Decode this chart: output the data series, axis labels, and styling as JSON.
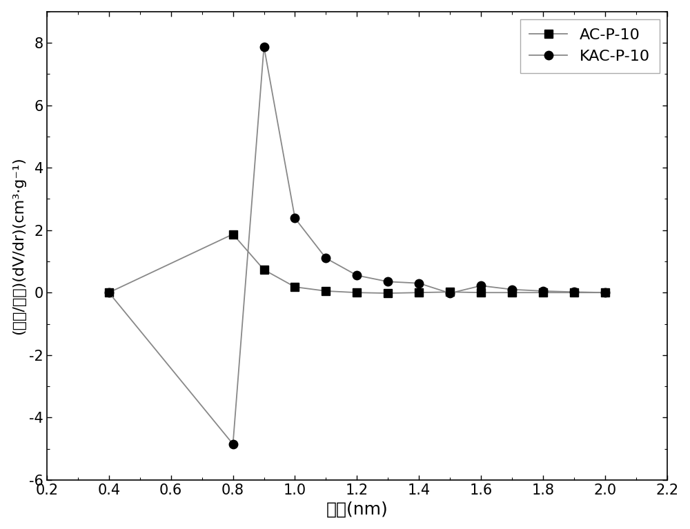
{
  "ac_x": [
    0.4,
    0.8,
    0.9,
    1.0,
    1.1,
    1.2,
    1.3,
    1.4,
    1.5,
    1.6,
    1.7,
    1.8,
    1.9,
    2.0
  ],
  "ac_y": [
    0.0,
    1.87,
    0.73,
    0.18,
    0.05,
    0.0,
    -0.02,
    0.0,
    0.02,
    0.0,
    0.0,
    0.0,
    0.0,
    0.0
  ],
  "kac_x": [
    0.4,
    0.8,
    0.9,
    1.0,
    1.1,
    1.2,
    1.3,
    1.4,
    1.5,
    1.6,
    1.7,
    1.8,
    1.9,
    2.0
  ],
  "kac_y": [
    0.0,
    -4.85,
    7.87,
    2.38,
    1.1,
    0.55,
    0.35,
    0.3,
    -0.02,
    0.22,
    0.1,
    0.05,
    0.02,
    0.0
  ],
  "xlabel": "孔径(nm)",
  "ylabel_line1": "(孔容/孔径)(dV/dr)(cm³·g⁻¹)",
  "xlim": [
    0.2,
    2.2
  ],
  "ylim": [
    -6,
    9
  ],
  "xticks": [
    0.2,
    0.4,
    0.6,
    0.8,
    1.0,
    1.2,
    1.4,
    1.6,
    1.8,
    2.0,
    2.2
  ],
  "yticks": [
    -6,
    -4,
    -2,
    0,
    2,
    4,
    6,
    8
  ],
  "line_color": "#888888",
  "marker_color": "#000000",
  "legend_labels": [
    "AC-P-10",
    "KAC-P-10"
  ],
  "background_color": "#ffffff",
  "font_size_label": 18,
  "font_size_tick": 15,
  "font_size_legend": 16
}
